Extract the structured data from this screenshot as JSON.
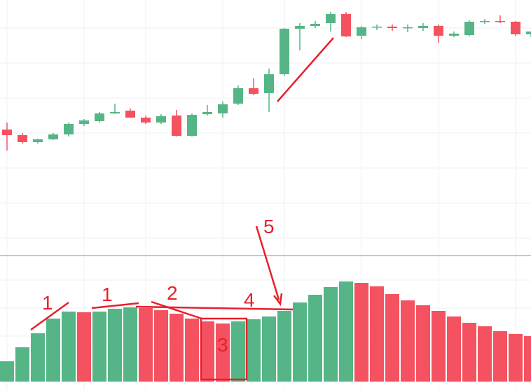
{
  "chart_data": [
    {
      "type": "candlestick",
      "up_color": "#56b586",
      "down_color": "#f45260",
      "ylim": [
        0,
        365
      ],
      "open": [
        180,
        172,
        162,
        166,
        173,
        188,
        192,
        203,
        207,
        197,
        190,
        200,
        171,
        202,
        203,
        217,
        239,
        232,
        259,
        324,
        328,
        332,
        345,
        314,
        326,
        327,
        325,
        325,
        328,
        314,
        315,
        334,
        335,
        334,
        316
      ],
      "high": [
        190,
        175,
        167,
        175,
        190,
        195,
        205,
        217,
        210,
        200,
        202,
        208,
        203,
        215,
        220,
        243,
        253,
        267,
        325,
        332,
        335,
        348,
        348,
        328,
        330,
        330,
        330,
        332,
        330,
        320,
        336,
        338,
        343,
        335,
        320
      ],
      "low": [
        150,
        160,
        160,
        165,
        170,
        185,
        190,
        202,
        197,
        188,
        188,
        170,
        170,
        200,
        197,
        215,
        229,
        205,
        257,
        293,
        325,
        320,
        312,
        309,
        322,
        321,
        319,
        321,
        304,
        312,
        313,
        331,
        332,
        314,
        312
      ],
      "close": [
        172,
        162,
        166,
        173,
        188,
        193,
        203,
        205,
        197,
        190,
        199,
        171,
        201,
        205,
        216,
        239,
        231,
        259,
        324,
        328,
        331,
        345,
        313,
        326,
        327,
        325,
        326,
        328,
        314,
        317,
        334,
        335,
        334,
        316,
        320
      ]
    },
    {
      "type": "histogram-bars",
      "up_color": "#56b586",
      "down_color": "#f45260",
      "ylim": [
        0,
        180
      ],
      "values": [
        29,
        49,
        69,
        90,
        100,
        99,
        100,
        104,
        106,
        105,
        102,
        97,
        90,
        86,
        83,
        86,
        89,
        93,
        101,
        113,
        124,
        135,
        143,
        141,
        136,
        125,
        116,
        109,
        101,
        93,
        84,
        79,
        72,
        68,
        65
      ],
      "annotations": [
        "1",
        "1",
        "2",
        "3",
        "4",
        "5"
      ]
    }
  ]
}
